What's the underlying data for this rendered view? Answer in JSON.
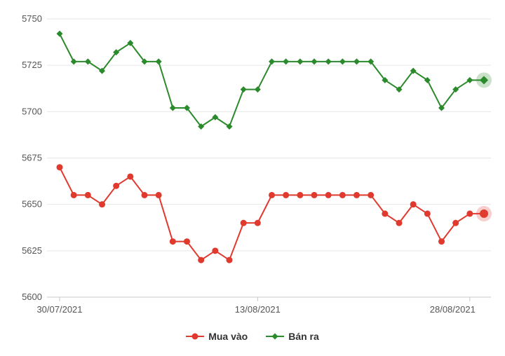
{
  "chart_data": {
    "type": "line",
    "x": [
      "30/07/2021",
      "31/07/2021",
      "01/08/2021",
      "02/08/2021",
      "03/08/2021",
      "04/08/2021",
      "05/08/2021",
      "06/08/2021",
      "07/08/2021",
      "08/08/2021",
      "09/08/2021",
      "10/08/2021",
      "11/08/2021",
      "12/08/2021",
      "13/08/2021",
      "14/08/2021",
      "15/08/2021",
      "16/08/2021",
      "17/08/2021",
      "18/08/2021",
      "19/08/2021",
      "20/08/2021",
      "21/08/2021",
      "22/08/2021",
      "23/08/2021",
      "24/08/2021",
      "25/08/2021",
      "26/08/2021",
      "27/08/2021",
      "28/08/2021",
      "29/08/2021"
    ],
    "xtick_labels": [
      "30/07/2021",
      "13/08/2021",
      "28/08/2021"
    ],
    "ylim": [
      5600,
      5750
    ],
    "yticks": [
      5600,
      5625,
      5650,
      5675,
      5700,
      5725,
      5750
    ],
    "grid": true,
    "legend_position": "bottom",
    "series": [
      {
        "name": "Mua vào",
        "color": "#e03a2f",
        "marker": "circle",
        "values": [
          5670,
          5655,
          5655,
          5650,
          5660,
          5665,
          5655,
          5655,
          5630,
          5630,
          5620,
          5625,
          5620,
          5640,
          5640,
          5655,
          5655,
          5655,
          5655,
          5655,
          5655,
          5655,
          5655,
          5645,
          5640,
          5650,
          5645,
          5630,
          5640,
          5645,
          5645
        ]
      },
      {
        "name": "Bán ra",
        "color": "#2b8a2b",
        "marker": "diamond",
        "values": [
          5742,
          5727,
          5727,
          5722,
          5732,
          5737,
          5727,
          5727,
          5702,
          5702,
          5692,
          5697,
          5692,
          5712,
          5712,
          5727,
          5727,
          5727,
          5727,
          5727,
          5727,
          5727,
          5727,
          5717,
          5712,
          5722,
          5717,
          5702,
          5712,
          5717,
          5717
        ]
      }
    ]
  }
}
